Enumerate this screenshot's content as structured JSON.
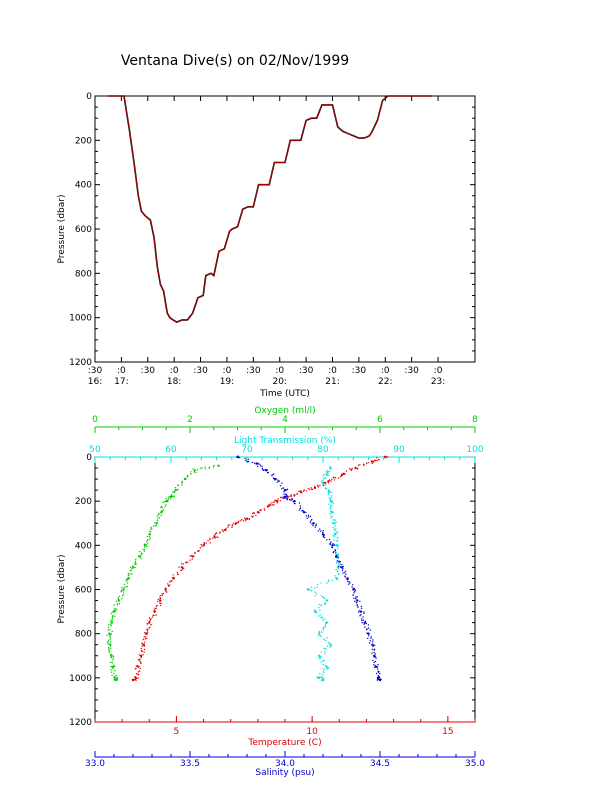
{
  "title": "Ventana Dive(s) on 02/Nov/1999",
  "colors": {
    "axis": "#000000",
    "pressure_trace": "#cc0000",
    "oxygen": "#00cc00",
    "transmission": "#00e0e0",
    "temperature": "#dd0000",
    "salinity": "#0000cc"
  },
  "chart_data": [
    {
      "type": "line",
      "xlabel": "Time (UTC)",
      "ylabel": "Pressure (dbar)",
      "ylim": [
        0,
        1200
      ],
      "y_inverted": true,
      "y_ticks": [
        0,
        200,
        400,
        600,
        800,
        1000,
        1200
      ],
      "x_range": [
        "16:30",
        "23:40"
      ],
      "x_ticks_minutes": [
        ":30",
        ":0",
        ":30",
        ":0",
        ":30",
        ":0",
        ":30",
        ":0",
        ":30",
        ":0",
        ":30",
        ":0",
        ":30",
        ":0"
      ],
      "x_ticks_hours": [
        "16:",
        "17:",
        "18:",
        "19:",
        "20:",
        "21:",
        "22:",
        "23:"
      ],
      "x_tick_decimal_hours": [
        16.5,
        17.0,
        17.5,
        18.0,
        18.5,
        19.0,
        19.5,
        20.0,
        20.5,
        21.0,
        21.5,
        22.0,
        22.5,
        23.0
      ],
      "x_hour_positions": [
        16.5,
        17.0,
        18.0,
        19.0,
        20.0,
        21.0,
        22.0,
        23.0
      ],
      "xlim_decimal_hours": [
        16.5,
        23.7
      ],
      "series": [
        {
          "x": [
            16.75,
            16.92,
            17.05,
            17.15,
            17.25,
            17.32,
            17.38,
            17.45,
            17.55,
            17.62,
            17.68,
            17.74,
            17.8,
            17.87,
            17.92,
            17.98,
            18.05,
            18.15,
            18.25,
            18.35,
            18.45,
            18.55,
            18.6,
            18.7,
            18.75,
            18.85,
            18.95,
            19.05,
            19.1,
            19.2,
            19.3,
            19.4,
            19.5,
            19.6,
            19.7,
            19.8,
            19.9,
            20.0,
            20.1,
            20.2,
            20.3,
            20.4,
            20.5,
            20.6,
            20.7,
            20.8,
            20.9,
            21.0,
            21.1,
            21.2,
            21.3,
            21.4,
            21.5,
            21.6,
            21.7,
            21.75,
            21.85,
            21.95,
            22.05,
            22.15,
            22.25,
            22.35,
            22.45,
            22.55,
            22.62,
            22.7,
            22.8,
            22.88
          ],
          "y": [
            0,
            0,
            0,
            150,
            320,
            450,
            520,
            540,
            560,
            640,
            770,
            850,
            880,
            980,
            1000,
            1010,
            1020,
            1010,
            1010,
            980,
            910,
            900,
            810,
            800,
            810,
            700,
            690,
            610,
            600,
            590,
            510,
            500,
            500,
            400,
            400,
            400,
            300,
            300,
            300,
            200,
            200,
            200,
            110,
            100,
            100,
            40,
            40,
            40,
            140,
            160,
            170,
            180,
            190,
            190,
            180,
            160,
            110,
            20,
            0,
            0,
            0,
            0,
            0,
            0,
            0,
            0,
            0,
            0
          ]
        }
      ]
    },
    {
      "type": "scatter",
      "ylabel": "Pressure (dbar)",
      "ylim": [
        0,
        1200
      ],
      "y_inverted": true,
      "y_ticks": [
        0,
        200,
        400,
        600,
        800,
        1000,
        1200
      ],
      "axes": [
        {
          "label": "Oxygen (ml/l)",
          "position": "top",
          "range": [
            0,
            8
          ],
          "ticks": [
            0,
            2,
            4,
            6,
            8
          ]
        },
        {
          "label": "Light Transmission (%)",
          "position": "top",
          "range": [
            50,
            100
          ],
          "ticks": [
            50,
            60,
            70,
            80,
            90,
            100
          ]
        },
        {
          "label": "Temperature (C)",
          "position": "bottom",
          "range": [
            2,
            16
          ],
          "ticks": [
            5,
            10,
            15
          ]
        },
        {
          "label": "Salinity (psu)",
          "position": "bottom",
          "range": [
            33.0,
            35.0
          ],
          "ticks": [
            "33.0",
            "33.5",
            "34.0",
            "34.5",
            "35.0"
          ]
        }
      ],
      "series": [
        {
          "name": "Oxygen (ml/l)",
          "pressure": [
            40,
            60,
            100,
            150,
            180,
            200,
            250,
            300,
            350,
            400,
            450,
            500,
            550,
            600,
            650,
            700,
            750,
            800,
            850,
            900,
            950,
            1000,
            1010
          ],
          "values": [
            2.6,
            2.1,
            1.9,
            1.7,
            1.6,
            1.5,
            1.4,
            1.3,
            1.15,
            1.05,
            0.95,
            0.8,
            0.7,
            0.6,
            0.5,
            0.4,
            0.35,
            0.3,
            0.32,
            0.35,
            0.38,
            0.42,
            0.45
          ]
        },
        {
          "name": "Light Transmission (%)",
          "pressure": [
            50,
            80,
            120,
            160,
            200,
            250,
            300,
            350,
            400,
            450,
            500,
            550,
            600,
            650,
            700,
            750,
            800,
            850,
            900,
            950,
            1000,
            1010
          ],
          "values": [
            81,
            80.5,
            80,
            80.8,
            81,
            81.2,
            81.5,
            81.6,
            81.8,
            81.9,
            82,
            81.8,
            78,
            80.5,
            79,
            80.5,
            79.5,
            81,
            79.5,
            80.5,
            79.5,
            80
          ]
        },
        {
          "name": "Temperature (C)",
          "pressure": [
            0,
            20,
            50,
            80,
            110,
            140,
            160,
            180,
            200,
            220,
            250,
            280,
            300,
            330,
            360,
            400,
            450,
            500,
            550,
            600,
            650,
            700,
            750,
            800,
            850,
            900,
            950,
            1000,
            1010
          ],
          "values": [
            12.7,
            12.2,
            11.6,
            11.1,
            10.6,
            10.1,
            9.6,
            9.1,
            8.7,
            8.4,
            8.0,
            7.6,
            7.2,
            6.8,
            6.4,
            6.0,
            5.6,
            5.2,
            4.9,
            4.6,
            4.4,
            4.2,
            4.0,
            3.9,
            3.8,
            3.7,
            3.6,
            3.5,
            3.4
          ]
        },
        {
          "name": "Salinity (psu)",
          "pressure": [
            0,
            30,
            60,
            100,
            150,
            180,
            200,
            250,
            300,
            350,
            400,
            450,
            500,
            550,
            600,
            650,
            700,
            750,
            800,
            850,
            900,
            950,
            1000,
            1010
          ],
          "values": [
            33.75,
            33.85,
            33.9,
            33.95,
            34.0,
            34.0,
            34.05,
            34.1,
            34.15,
            34.2,
            34.25,
            34.27,
            34.3,
            34.33,
            34.36,
            34.38,
            34.4,
            34.42,
            34.44,
            34.46,
            34.47,
            34.48,
            34.49,
            34.5
          ]
        }
      ]
    }
  ]
}
